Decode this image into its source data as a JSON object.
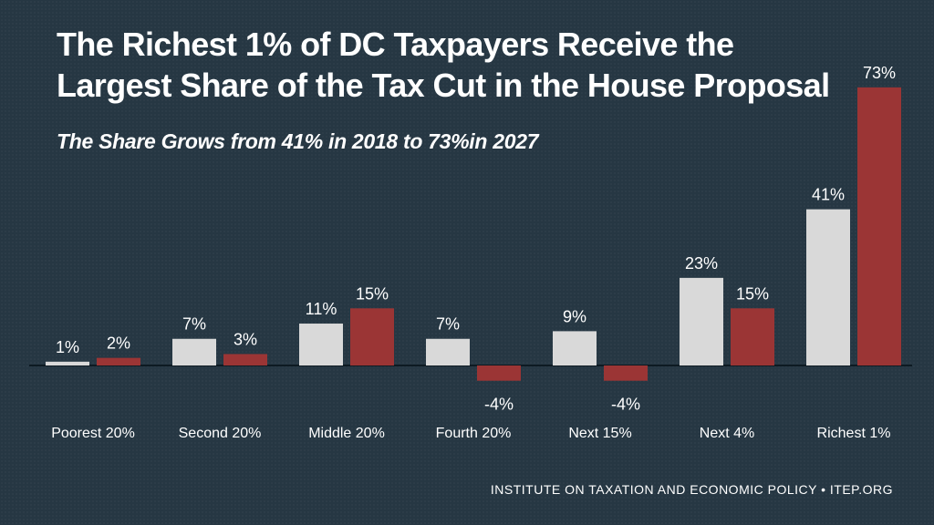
{
  "title_line1": "The Richest 1% of DC Taxpayers Receive the",
  "title_line2": "Largest Share of the Tax Cut in the House Proposal",
  "subtitle": "The Share Grows from 41% in 2018 to 73%in 2027",
  "footer": "INSTITUTE ON TAXATION AND ECONOMIC POLICY • ITEP.ORG",
  "colors": {
    "background": "#263743",
    "series_2018": "#d9d9d9",
    "series_2027": "#9b3535",
    "axis": "#0d1a22",
    "text": "#ffffff"
  },
  "chart_data": {
    "type": "bar",
    "categories": [
      "Poorest 20%",
      "Second 20%",
      "Middle 20%",
      "Fourth 20%",
      "Next 15%",
      "Next 4%",
      "Richest 1%"
    ],
    "series": [
      {
        "name": "2018",
        "values": [
          1,
          7,
          11,
          7,
          9,
          23,
          41
        ],
        "labels": [
          "1%",
          "7%",
          "11%",
          "7%",
          "9%",
          "23%",
          "41%"
        ]
      },
      {
        "name": "2027",
        "values": [
          2,
          3,
          15,
          -4,
          -4,
          15,
          73
        ],
        "labels": [
          "2%",
          "3%",
          "15%",
          "-4%",
          "-4%",
          "15%",
          "73%"
        ]
      }
    ],
    "ylim": [
      -4,
      73
    ],
    "grid": false,
    "legend": "none",
    "xlabel": "",
    "ylabel": ""
  }
}
